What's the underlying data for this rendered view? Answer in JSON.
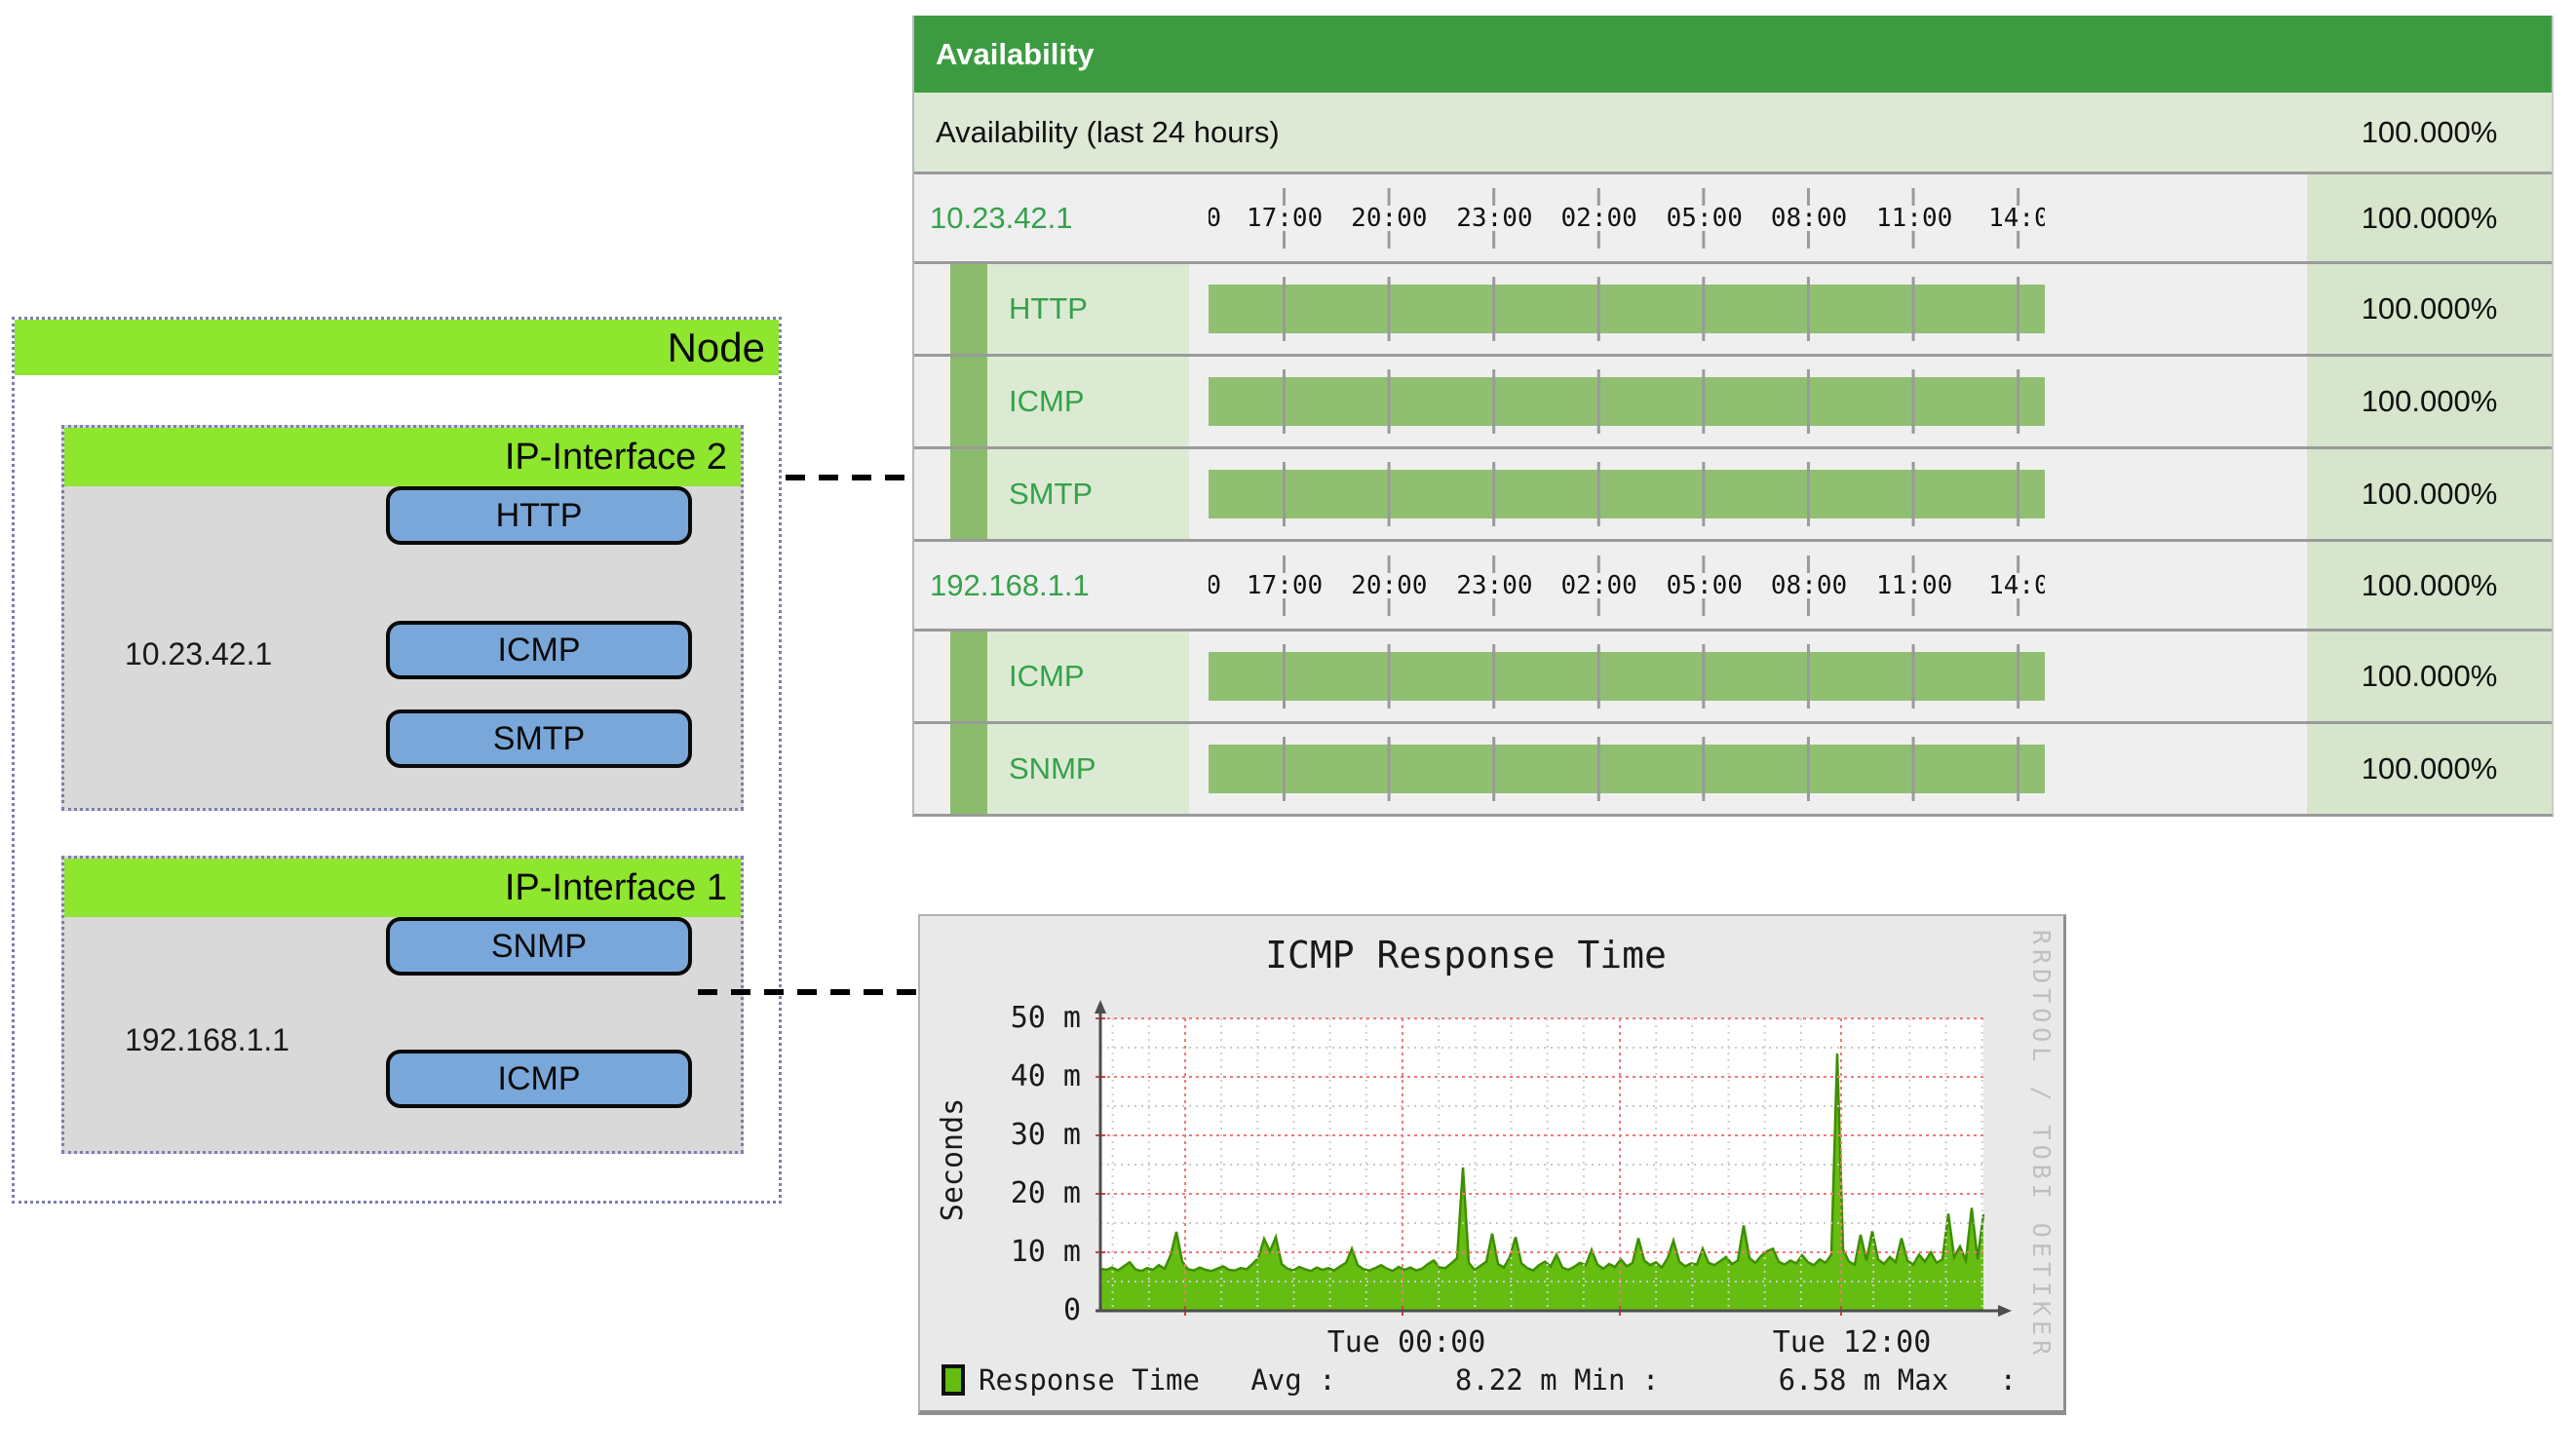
{
  "node_diagram": {
    "node_label": "Node",
    "interfaces": [
      {
        "label": "IP-Interface 2",
        "ip": "10.23.42.1",
        "services": [
          "ICMP",
          "SMTP",
          "HTTP"
        ]
      },
      {
        "label": "IP-Interface 1",
        "ip": "192.168.1.1",
        "services": [
          "ICMP",
          "SNMP"
        ]
      }
    ]
  },
  "availability_table": {
    "header": "Availability",
    "timeline_labels": [
      "0",
      "17:00",
      "20:00",
      "23:00",
      "02:00",
      "05:00",
      "08:00",
      "11:00",
      "14:0"
    ],
    "rows": [
      {
        "type": "summary",
        "label": "Availability (last 24 hours)",
        "value": "100.000%"
      },
      {
        "type": "interface",
        "label": "10.23.42.1",
        "value": "100.000%"
      },
      {
        "type": "service",
        "label": "HTTP",
        "value": "100.000%"
      },
      {
        "type": "service",
        "label": "ICMP",
        "value": "100.000%"
      },
      {
        "type": "service",
        "label": "SMTP",
        "value": "100.000%"
      },
      {
        "type": "interface",
        "label": "192.168.1.1",
        "value": "100.000%"
      },
      {
        "type": "service",
        "label": "ICMP",
        "value": "100.000%"
      },
      {
        "type": "service",
        "label": "SNMP",
        "value": "100.000%"
      }
    ]
  },
  "chart_data": {
    "type": "area",
    "title": "ICMP Response Time",
    "ylabel": "Seconds",
    "unit": "m",
    "ylim": [
      0,
      50
    ],
    "yticks": [
      "0",
      "10 m",
      "20 m",
      "30 m",
      "40 m",
      "50 m"
    ],
    "xticks": [
      "Tue 00:00",
      "Tue 12:00"
    ],
    "grid": "red-major-dotted, gray-minor-dotted",
    "legend_position": "bottom",
    "watermark": "RRDTOOL / TOBI OETIKER",
    "stats": {
      "avg": "8.22 m",
      "min": "6.58 m",
      "max": ""
    },
    "legend_line": "Response Time   Avg :       8.22 m Min :       6.58 m Max   :",
    "series": [
      {
        "name": "Response Time",
        "color": "#65bd11",
        "line_color": "#3e8e00",
        "values": [
          7.2,
          7.0,
          7.4,
          6.9,
          7.6,
          8.3,
          7.1,
          6.8,
          7.3,
          7.0,
          7.8,
          7.2,
          9.5,
          13.5,
          8.4,
          7.1,
          6.9,
          7.4,
          7.0,
          6.8,
          7.2,
          7.6,
          7.0,
          6.9,
          7.3,
          7.1,
          8.0,
          9.0,
          12.3,
          10.2,
          12.6,
          8.0,
          7.2,
          6.9,
          7.5,
          7.1,
          6.8,
          7.4,
          7.0,
          7.3,
          6.9,
          7.6,
          8.2,
          10.6,
          7.8,
          7.1,
          6.9,
          7.3,
          7.8,
          7.2,
          6.8,
          7.5,
          7.0,
          7.4,
          6.9,
          7.2,
          8.0,
          8.6,
          7.4,
          7.3,
          8.1,
          9.0,
          24.5,
          8.2,
          7.0,
          7.7,
          8.4,
          13.2,
          8.0,
          7.4,
          9.2,
          12.6,
          8.1,
          7.3,
          6.9,
          7.8,
          8.4,
          7.6,
          9.6,
          7.4,
          7.0,
          7.5,
          8.2,
          7.8,
          10.4,
          7.9,
          7.2,
          8.0,
          7.5,
          8.8,
          7.6,
          8.2,
          12.4,
          8.6,
          7.8,
          8.3,
          7.4,
          9.0,
          12.0,
          8.4,
          7.6,
          8.1,
          7.9,
          10.6,
          8.2,
          7.8,
          8.5,
          9.2,
          8.0,
          8.6,
          14.6,
          9.0,
          8.2,
          9.4,
          10.2,
          10.6,
          8.4,
          7.9,
          8.6,
          8.1,
          9.5,
          8.3,
          7.8,
          8.8,
          8.2,
          9.6,
          44.0,
          10.5,
          8.4,
          7.9,
          13.0,
          8.6,
          13.6,
          8.8,
          8.0,
          9.2,
          8.3,
          12.4,
          8.6,
          7.9,
          9.6,
          8.4,
          10.0,
          8.2,
          8.8,
          16.6,
          9.2,
          11.0,
          8.6,
          17.6,
          8.8,
          16.5
        ]
      }
    ]
  },
  "colors": {
    "table_header_green": "#3c9b41",
    "table_row_sage": "#dde8d5",
    "table_pct_green": "#d6e5cb",
    "table_bar_green": "#90bf72",
    "table_link_green": "#35a14b",
    "node_lime": "#8ee62e",
    "node_gray": "#d9d9d9",
    "service_button_blue": "#79a7d9",
    "dotted_border": "#7d7db3",
    "rrd_green": "#65bd11",
    "rrd_grid_red": "#f07878",
    "rrd_grid_gray": "#c9c9c9"
  }
}
